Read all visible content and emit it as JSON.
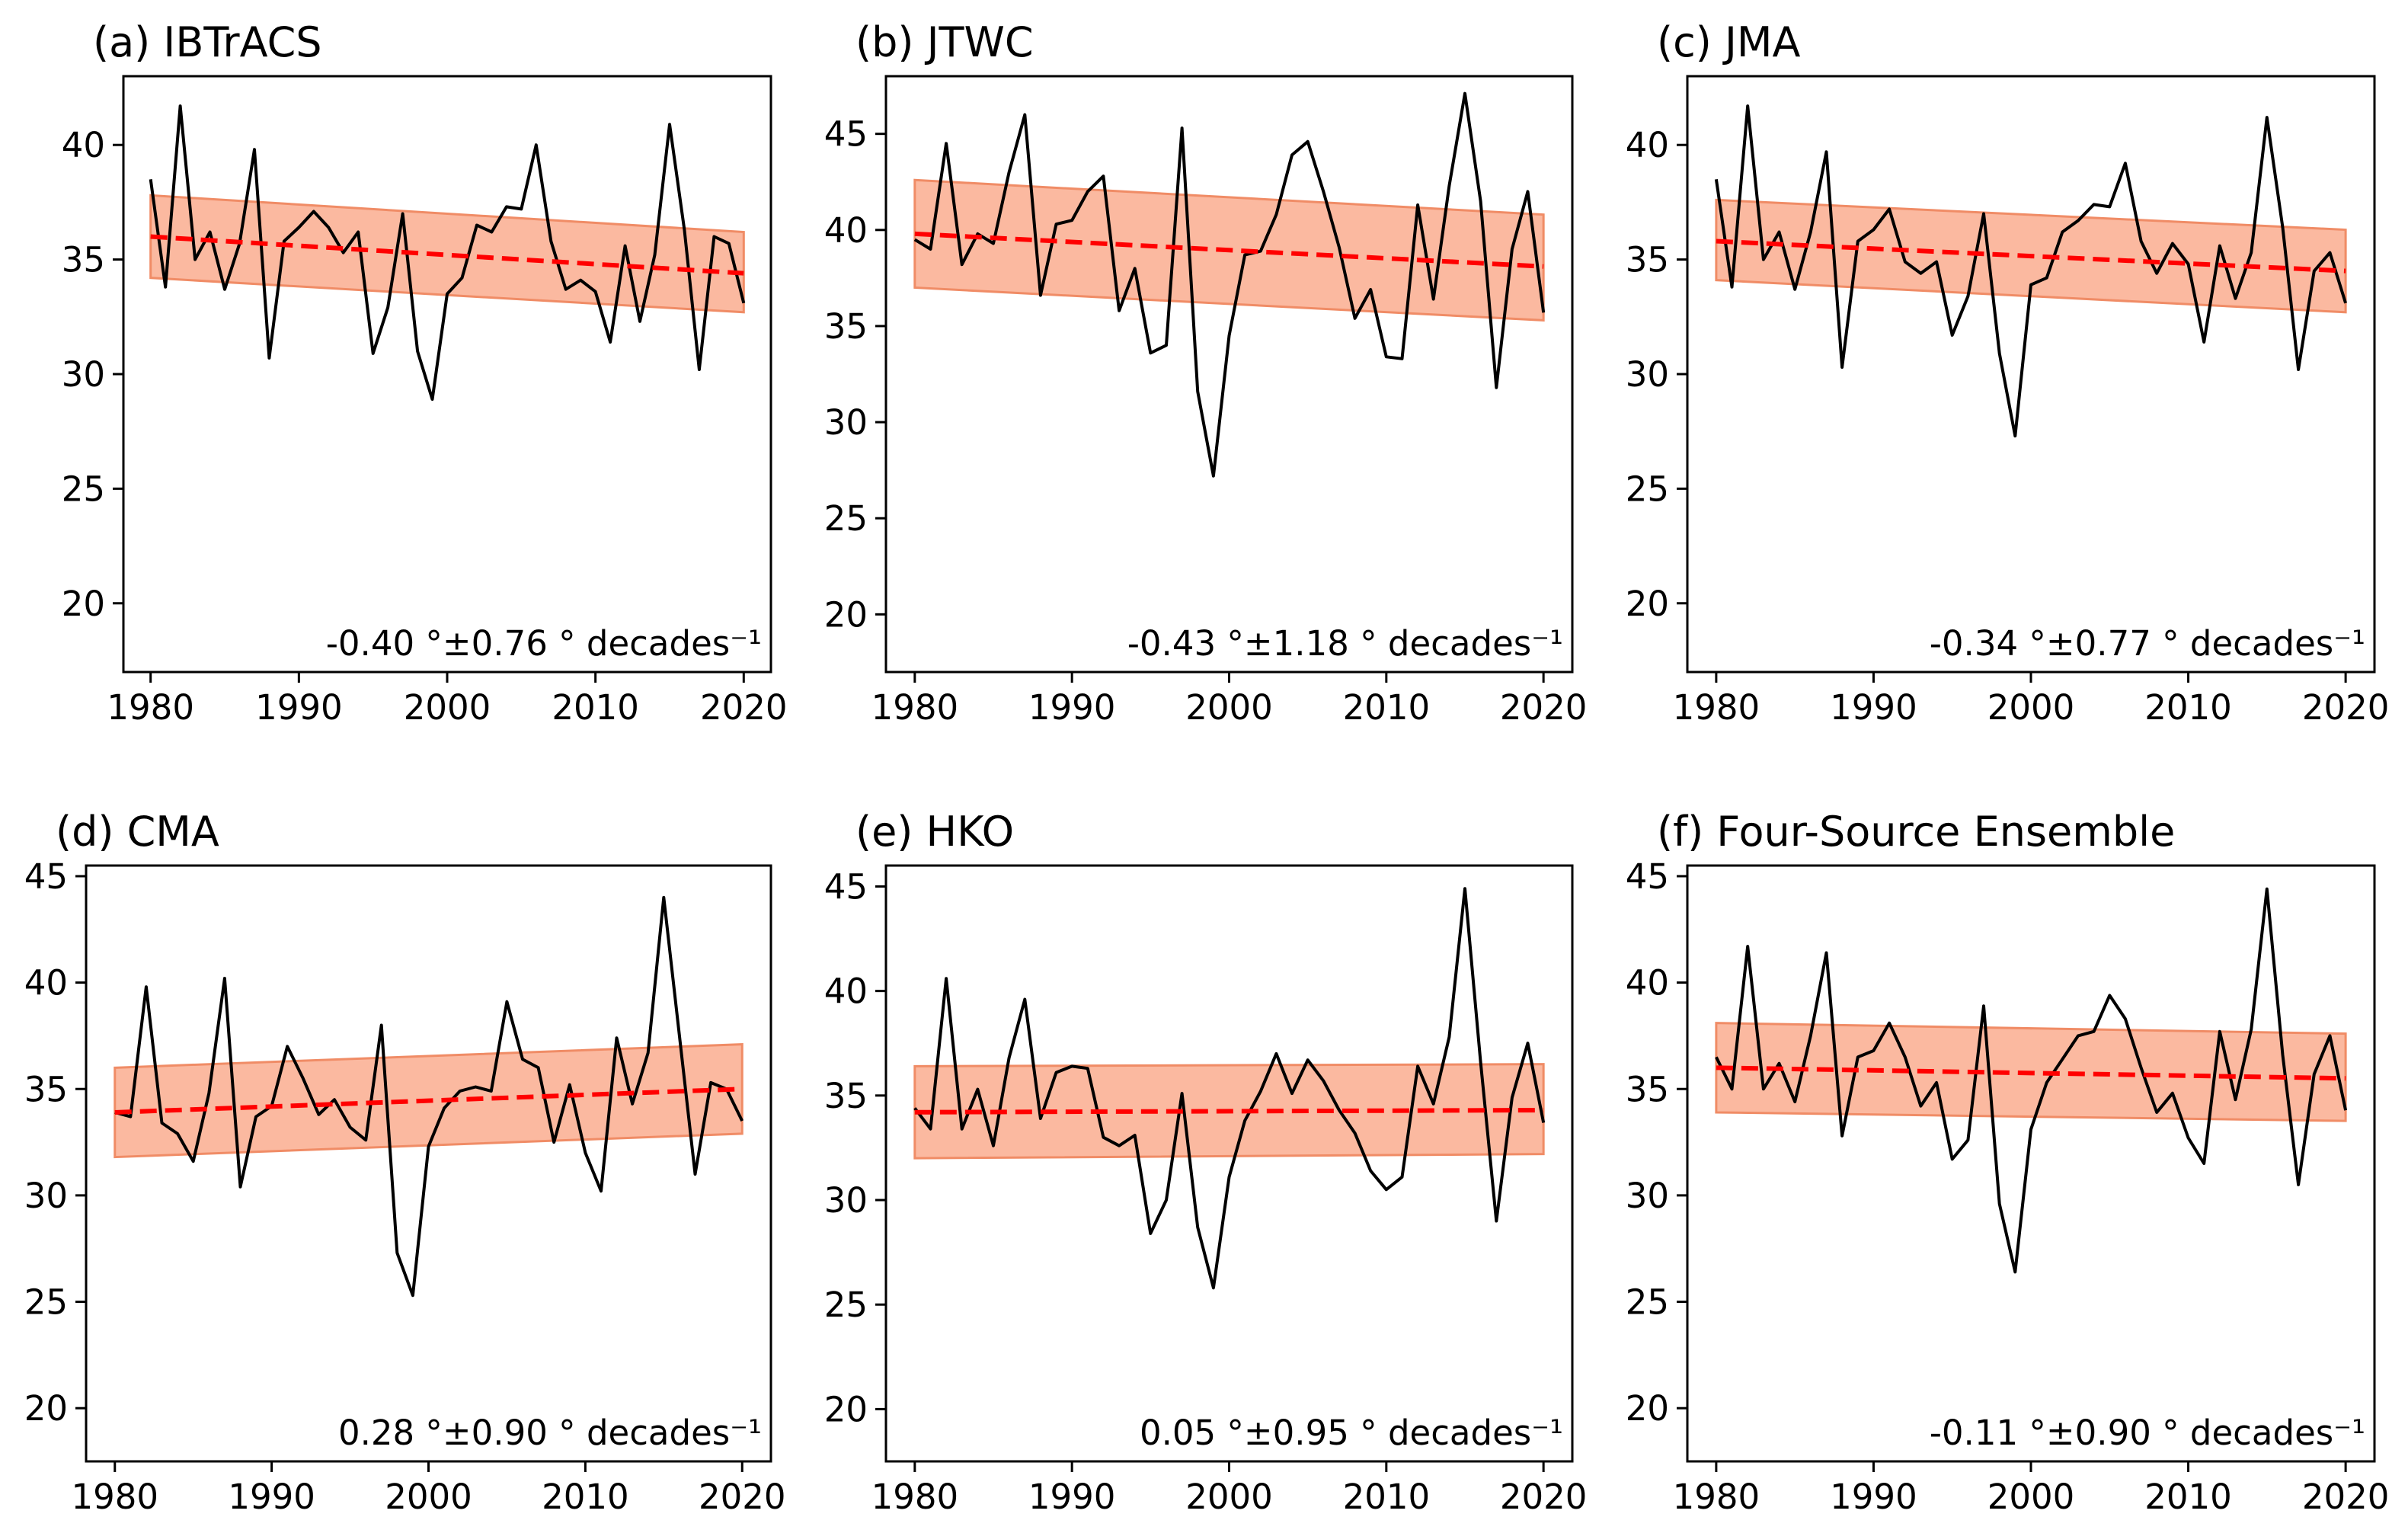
{
  "chart_data": [
    {
      "type": "line",
      "title": "(a) IBTrACS",
      "xlim": [
        1980,
        2020
      ],
      "ylim": [
        17,
        43
      ],
      "xticks": [
        1980,
        1990,
        2000,
        2010,
        2020
      ],
      "yticks": [
        20,
        25,
        30,
        35,
        40
      ],
      "grid": false,
      "x": [
        1980,
        1981,
        1982,
        1983,
        1984,
        1985,
        1986,
        1987,
        1988,
        1989,
        1990,
        1991,
        1992,
        1993,
        1994,
        1995,
        1996,
        1997,
        1998,
        1999,
        2000,
        2001,
        2002,
        2003,
        2004,
        2005,
        2006,
        2007,
        2008,
        2009,
        2010,
        2011,
        2012,
        2013,
        2014,
        2015,
        2016,
        2017,
        2018,
        2019,
        2020
      ],
      "series": [
        {
          "values": [
            38.5,
            33.8,
            41.7,
            35.0,
            36.2,
            33.7,
            35.7,
            39.8,
            30.7,
            35.8,
            36.4,
            37.1,
            36.4,
            35.3,
            36.2,
            30.9,
            32.9,
            37.0,
            31.0,
            28.9,
            33.5,
            34.2,
            36.5,
            36.2,
            37.3,
            37.2,
            40.0,
            35.8,
            33.7,
            34.1,
            33.6,
            31.4,
            35.6,
            32.3,
            35.2,
            40.9,
            36.3,
            30.2,
            36.0,
            35.7,
            33.1
          ]
        }
      ],
      "trend_line": {
        "start": 36.0,
        "end": 34.4
      },
      "confidence_band": {
        "upper": [
          37.8,
          36.2
        ],
        "lower": [
          34.2,
          32.7
        ]
      },
      "annotation": "-0.40 °±0.76 ° decades⁻¹",
      "colors": {
        "series": "#000000",
        "trend": "#ff0000",
        "band_fill": "#fbb9a0",
        "band_edge": "#f08c66"
      }
    },
    {
      "type": "line",
      "title": "(b) JTWC",
      "xlim": [
        1980,
        2020
      ],
      "ylim": [
        17,
        48
      ],
      "xticks": [
        1980,
        1990,
        2000,
        2010,
        2020
      ],
      "yticks": [
        20,
        25,
        30,
        35,
        40,
        45
      ],
      "grid": false,
      "x": [
        1980,
        1981,
        1982,
        1983,
        1984,
        1985,
        1986,
        1987,
        1988,
        1989,
        1990,
        1991,
        1992,
        1993,
        1994,
        1995,
        1996,
        1997,
        1998,
        1999,
        2000,
        2001,
        2002,
        2003,
        2004,
        2005,
        2006,
        2007,
        2008,
        2009,
        2010,
        2011,
        2012,
        2013,
        2014,
        2015,
        2016,
        2017,
        2018,
        2019,
        2020
      ],
      "series": [
        {
          "values": [
            39.5,
            39.0,
            44.5,
            38.2,
            39.8,
            39.3,
            43.0,
            46.0,
            36.6,
            40.3,
            40.5,
            42.0,
            42.8,
            35.8,
            38.0,
            33.6,
            34.0,
            45.3,
            31.6,
            27.2,
            34.5,
            38.7,
            38.9,
            40.8,
            43.9,
            44.6,
            42.0,
            39.1,
            35.4,
            36.9,
            33.4,
            33.3,
            41.3,
            36.4,
            42.3,
            47.1,
            41.5,
            31.8,
            39.0,
            42.0,
            35.7
          ]
        }
      ],
      "trend_line": {
        "start": 39.8,
        "end": 38.1
      },
      "confidence_band": {
        "upper": [
          42.6,
          40.8
        ],
        "lower": [
          37.0,
          35.3
        ]
      },
      "annotation": "-0.43 °±1.18 ° decades⁻¹",
      "colors": {
        "series": "#000000",
        "trend": "#ff0000",
        "band_fill": "#fbb9a0",
        "band_edge": "#f08c66"
      }
    },
    {
      "type": "line",
      "title": "(c) JMA",
      "xlim": [
        1980,
        2020
      ],
      "ylim": [
        17,
        43
      ],
      "xticks": [
        1980,
        1990,
        2000,
        2010,
        2020
      ],
      "yticks": [
        20,
        25,
        30,
        35,
        40
      ],
      "grid": false,
      "x": [
        1980,
        1981,
        1982,
        1983,
        1984,
        1985,
        1986,
        1987,
        1988,
        1989,
        1990,
        1991,
        1992,
        1993,
        1994,
        1995,
        1996,
        1997,
        1998,
        1999,
        2000,
        2001,
        2002,
        2003,
        2004,
        2005,
        2006,
        2007,
        2008,
        2009,
        2010,
        2011,
        2012,
        2013,
        2014,
        2015,
        2016,
        2017,
        2018,
        2019,
        2020
      ],
      "series": [
        {
          "values": [
            38.5,
            33.8,
            41.7,
            35.0,
            36.2,
            33.7,
            36.2,
            39.7,
            30.3,
            35.8,
            36.3,
            37.2,
            34.9,
            34.4,
            34.9,
            31.7,
            33.4,
            37.0,
            30.9,
            27.3,
            33.9,
            34.2,
            36.2,
            36.7,
            37.4,
            37.3,
            39.2,
            35.8,
            34.4,
            35.7,
            34.8,
            31.4,
            35.6,
            33.3,
            35.3,
            41.2,
            36.4,
            30.2,
            34.5,
            35.3,
            33.1
          ]
        }
      ],
      "trend_line": {
        "start": 35.8,
        "end": 34.5
      },
      "confidence_band": {
        "upper": [
          37.6,
          36.3
        ],
        "lower": [
          34.1,
          32.7
        ]
      },
      "annotation": "-0.34 °±0.77 ° decades⁻¹",
      "colors": {
        "series": "#000000",
        "trend": "#ff0000",
        "band_fill": "#fbb9a0",
        "band_edge": "#f08c66"
      }
    },
    {
      "type": "line",
      "title": "(d) CMA",
      "xlim": [
        1980,
        2020
      ],
      "ylim": [
        17.5,
        45.5
      ],
      "xticks": [
        1980,
        1990,
        2000,
        2010,
        2020
      ],
      "yticks": [
        20,
        25,
        30,
        35,
        40,
        45
      ],
      "grid": false,
      "x": [
        1980,
        1981,
        1982,
        1983,
        1984,
        1985,
        1986,
        1987,
        1988,
        1989,
        1990,
        1991,
        1992,
        1993,
        1994,
        1995,
        1996,
        1997,
        1998,
        1999,
        2000,
        2001,
        2002,
        2003,
        2004,
        2005,
        2006,
        2007,
        2008,
        2009,
        2010,
        2011,
        2012,
        2013,
        2014,
        2015,
        2016,
        2017,
        2018,
        2019,
        2020
      ],
      "series": [
        {
          "values": [
            33.9,
            33.7,
            39.8,
            33.4,
            32.9,
            31.6,
            34.8,
            40.2,
            30.4,
            33.7,
            34.2,
            37.0,
            35.5,
            33.8,
            34.5,
            33.2,
            32.6,
            38.0,
            27.3,
            25.3,
            32.3,
            34.1,
            34.9,
            35.1,
            34.9,
            39.1,
            36.4,
            36.0,
            32.5,
            35.2,
            32.0,
            30.2,
            37.4,
            34.3,
            36.7,
            44.0,
            37.5,
            31.0,
            35.3,
            35.0,
            33.5
          ]
        }
      ],
      "trend_line": {
        "start": 33.9,
        "end": 35.0
      },
      "confidence_band": {
        "upper": [
          36.0,
          37.1
        ],
        "lower": [
          31.8,
          32.9
        ]
      },
      "annotation": "0.28 °±0.90 ° decades⁻¹",
      "colors": {
        "series": "#000000",
        "trend": "#ff0000",
        "band_fill": "#fbb9a0",
        "band_edge": "#f08c66"
      }
    },
    {
      "type": "line",
      "title": "(e) HKO",
      "xlim": [
        1980,
        2020
      ],
      "ylim": [
        17.5,
        46
      ],
      "xticks": [
        1980,
        1990,
        2000,
        2010,
        2020
      ],
      "yticks": [
        20,
        25,
        30,
        35,
        40,
        45
      ],
      "grid": false,
      "x": [
        1980,
        1981,
        1982,
        1983,
        1984,
        1985,
        1986,
        1987,
        1988,
        1989,
        1990,
        1991,
        1992,
        1993,
        1994,
        1995,
        1996,
        1997,
        1998,
        1999,
        2000,
        2001,
        2002,
        2003,
        2004,
        2005,
        2006,
        2007,
        2008,
        2009,
        2010,
        2011,
        2012,
        2013,
        2014,
        2015,
        2016,
        2017,
        2018,
        2019,
        2020
      ],
      "series": [
        {
          "values": [
            34.4,
            33.4,
            40.6,
            33.4,
            35.3,
            32.6,
            36.8,
            39.6,
            33.9,
            36.1,
            36.4,
            36.3,
            33.0,
            32.6,
            33.1,
            28.4,
            30.0,
            35.1,
            28.7,
            25.8,
            31.1,
            33.8,
            35.2,
            37.0,
            35.1,
            36.7,
            35.7,
            34.3,
            33.2,
            31.4,
            30.5,
            31.1,
            36.4,
            34.6,
            37.8,
            44.9,
            36.6,
            29.0,
            34.9,
            37.5,
            33.7
          ]
        }
      ],
      "trend_line": {
        "start": 34.2,
        "end": 34.3
      },
      "confidence_band": {
        "upper": [
          36.4,
          36.5
        ],
        "lower": [
          32.0,
          32.2
        ]
      },
      "annotation": "0.05 °±0.95 ° decades⁻¹",
      "colors": {
        "series": "#000000",
        "trend": "#ff0000",
        "band_fill": "#fbb9a0",
        "band_edge": "#f08c66"
      }
    },
    {
      "type": "line",
      "title": "(f) Four-Source Ensemble",
      "xlim": [
        1980,
        2020
      ],
      "ylim": [
        17.5,
        45.5
      ],
      "xticks": [
        1980,
        1990,
        2000,
        2010,
        2020
      ],
      "yticks": [
        20,
        25,
        30,
        35,
        40,
        45
      ],
      "grid": false,
      "x": [
        1980,
        1981,
        1982,
        1983,
        1984,
        1985,
        1986,
        1987,
        1988,
        1989,
        1990,
        1991,
        1992,
        1993,
        1994,
        1995,
        1996,
        1997,
        1998,
        1999,
        2000,
        2001,
        2002,
        2003,
        2004,
        2005,
        2006,
        2007,
        2008,
        2009,
        2010,
        2011,
        2012,
        2013,
        2014,
        2015,
        2016,
        2017,
        2018,
        2019,
        2020
      ],
      "series": [
        {
          "values": [
            36.5,
            35.0,
            41.7,
            35.0,
            36.2,
            34.4,
            37.5,
            41.4,
            32.8,
            36.5,
            36.8,
            38.1,
            36.5,
            34.2,
            35.3,
            31.7,
            32.6,
            38.9,
            29.6,
            26.4,
            33.1,
            35.3,
            36.4,
            37.5,
            37.7,
            39.4,
            38.3,
            36.0,
            33.9,
            34.8,
            32.7,
            31.5,
            37.7,
            34.5,
            37.8,
            44.4,
            36.6,
            30.5,
            35.7,
            37.5,
            34.0
          ]
        }
      ],
      "trend_line": {
        "start": 36.0,
        "end": 35.5
      },
      "confidence_band": {
        "upper": [
          38.1,
          37.6
        ],
        "lower": [
          33.9,
          33.5
        ]
      },
      "annotation": "-0.11 °±0.90 ° decades⁻¹",
      "colors": {
        "series": "#000000",
        "trend": "#ff0000",
        "band_fill": "#fbb9a0",
        "band_edge": "#f08c66"
      }
    }
  ]
}
